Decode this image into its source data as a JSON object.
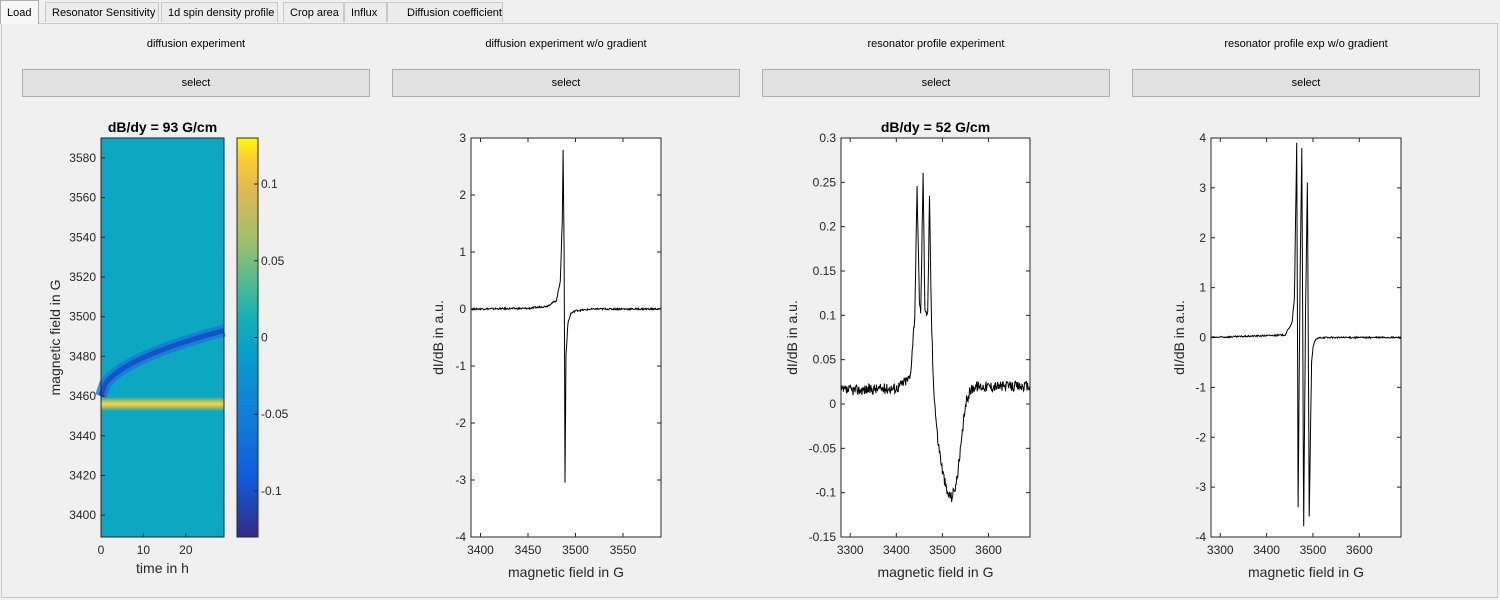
{
  "tabs": [
    {
      "label": "Load",
      "active": true
    },
    {
      "label": "Resonator Sensitivity"
    },
    {
      "label": "1d spin density profile"
    },
    {
      "label": "Crop area"
    },
    {
      "label": "Influx"
    },
    {
      "label": "Diffusion coefficient"
    }
  ],
  "columns": [
    {
      "title": "diffusion experiment",
      "button": "select"
    },
    {
      "title": "diffusion experiment w/o gradient",
      "button": "select"
    },
    {
      "title": "resonator profile experiment",
      "button": "select"
    },
    {
      "title": "resonator profile exp w/o gradient",
      "button": "select"
    }
  ],
  "colors": {
    "trace": "#000000",
    "plot_bg": "#ffffff",
    "button_bg": "#e1e1e1"
  },
  "chart_data": [
    {
      "type": "heatmap",
      "title": "dB/dy = 93 G/cm",
      "xlabel": "time in h",
      "ylabel": "magnetic field in G",
      "xlim": [
        0,
        29
      ],
      "ylim": [
        3389,
        3590
      ],
      "xticks": [
        "0",
        "10",
        "20"
      ],
      "yticks": [
        "3400",
        "3420",
        "3440",
        "3460",
        "3480",
        "3500",
        "3520",
        "3540",
        "3560",
        "3580"
      ],
      "colormap": "parula",
      "clim": [
        -0.13,
        0.13
      ],
      "colorbar_ticks": [
        "0.1",
        "0.05",
        "0",
        "-0.05",
        "-0.1"
      ],
      "features": [
        {
          "name": "positive band",
          "field_G": 3456,
          "value": 0.12
        },
        {
          "name": "negative drifting band",
          "start_G": 3460,
          "end_G": 3493,
          "value": -0.1
        }
      ]
    },
    {
      "type": "line",
      "title": "",
      "xlabel": "magnetic field in G",
      "ylabel": "dI/dB in a.u.",
      "xlim": [
        3390,
        3590
      ],
      "ylim": [
        -4,
        3
      ],
      "xticks": [
        "3400",
        "3450",
        "3500",
        "3550"
      ],
      "yticks": [
        "3",
        "2",
        "1",
        "0",
        "-1",
        "-2",
        "-3",
        "-4"
      ],
      "series": [
        {
          "x": [
            3390,
            3450,
            3470,
            3480,
            3484,
            3486,
            3487,
            3488,
            3489,
            3490,
            3492,
            3495,
            3500,
            3520,
            3590
          ],
          "y": [
            0.0,
            0.01,
            0.05,
            0.15,
            0.5,
            1.5,
            2.8,
            1.0,
            -3.05,
            -0.8,
            -0.25,
            -0.08,
            -0.03,
            0.0,
            0.0
          ]
        }
      ]
    },
    {
      "type": "line",
      "title": "dB/dy = 52 G/cm",
      "xlabel": "magnetic field in G",
      "ylabel": "dI/dB in a.u.",
      "xlim": [
        3280,
        3690
      ],
      "ylim": [
        -0.15,
        0.3
      ],
      "xticks": [
        "3300",
        "3400",
        "3500",
        "3600"
      ],
      "yticks": [
        "0.3",
        "0.25",
        "0.2",
        "0.15",
        "0.1",
        "0.05",
        "0",
        "-0.05",
        "-0.1",
        "-0.15"
      ],
      "series": [
        {
          "x": [
            3280,
            3400,
            3430,
            3440,
            3445,
            3450,
            3453,
            3458,
            3462,
            3468,
            3472,
            3476,
            3480,
            3485,
            3490,
            3500,
            3510,
            3520,
            3530,
            3540,
            3550,
            3560,
            3570,
            3600,
            3690
          ],
          "y": [
            0.015,
            0.018,
            0.03,
            0.1,
            0.24,
            0.12,
            0.1,
            0.26,
            0.11,
            0.1,
            0.23,
            0.1,
            0.03,
            -0.01,
            -0.04,
            -0.075,
            -0.1,
            -0.105,
            -0.09,
            -0.05,
            0.0,
            0.015,
            0.02,
            0.02,
            0.02
          ]
        }
      ]
    },
    {
      "type": "line",
      "title": "",
      "xlabel": "magnetic field in G",
      "ylabel": "dI/dB in a.u.",
      "xlim": [
        3280,
        3690
      ],
      "ylim": [
        -4,
        4
      ],
      "xticks": [
        "3300",
        "3400",
        "3500",
        "3600"
      ],
      "yticks": [
        "4",
        "3",
        "2",
        "1",
        "0",
        "-1",
        "-2",
        "-3",
        "-4"
      ],
      "series": [
        {
          "x": [
            3280,
            3440,
            3455,
            3460,
            3465,
            3468,
            3472,
            3476,
            3480,
            3484,
            3488,
            3492,
            3497,
            3500,
            3505,
            3515,
            3690
          ],
          "y": [
            0.0,
            0.05,
            0.3,
            0.8,
            3.9,
            -3.4,
            1.0,
            3.8,
            -3.8,
            0.5,
            3.1,
            -3.6,
            -0.5,
            -0.2,
            -0.05,
            0.0,
            0.0
          ]
        }
      ]
    }
  ]
}
